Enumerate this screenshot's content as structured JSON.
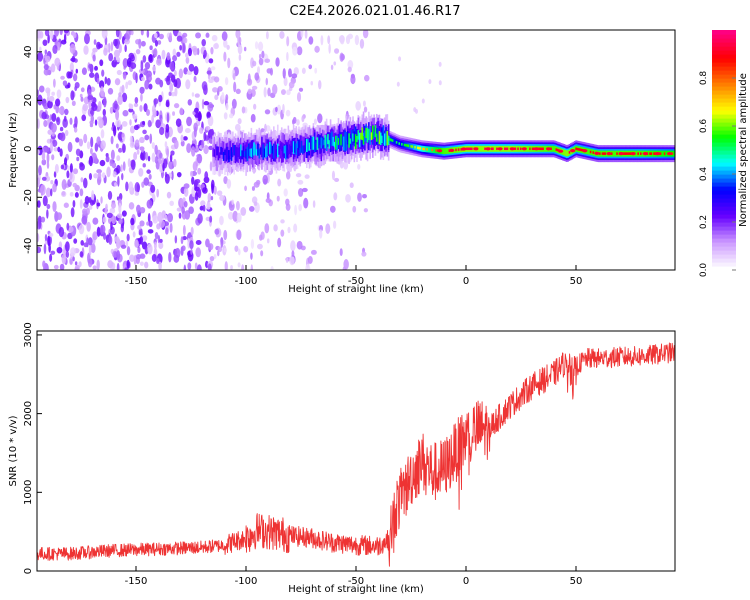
{
  "title": "C2E4.2026.021.01.46.R17",
  "chart_data": [
    {
      "type": "heatmap",
      "xlabel": "Height of straight line (km)",
      "ylabel": "Frequency (Hz)",
      "xlim": [
        -195,
        95
      ],
      "ylim": [
        -50,
        49
      ],
      "xticks": [
        -150,
        -100,
        -50,
        0,
        50
      ],
      "yticks": [
        -40,
        -20,
        0,
        20,
        40
      ],
      "colorbar": {
        "label": "Normalized spectral amplitude",
        "range": [
          0,
          1
        ],
        "ticks": [
          "0.0",
          "0.2",
          "0.4",
          "0.6",
          "0.8"
        ],
        "tick_values": [
          0,
          0.2,
          0.4,
          0.6,
          0.8
        ],
        "colors": [
          "#ffffff",
          "#cc99ff",
          "#6600ff",
          "#0000ff",
          "#00ffff",
          "#00ff00",
          "#ffff00",
          "#ff8000",
          "#ff0000",
          "#ff0080"
        ]
      },
      "ridge": {
        "description_points_x": [
          -115,
          -100,
          -80,
          -60,
          -40,
          -30,
          -20,
          -10,
          0,
          20,
          40,
          46,
          50,
          60,
          80,
          95
        ],
        "frequency_hz": [
          -2,
          -1,
          0,
          3,
          6,
          2,
          0,
          -1,
          0,
          0,
          0,
          -2,
          0,
          -2,
          -2,
          -2
        ],
        "amplitude": [
          0.3,
          0.4,
          0.4,
          0.5,
          0.6,
          0.5,
          0.7,
          0.9,
          0.95,
          0.95,
          0.9,
          0.95,
          0.9,
          0.9,
          0.9,
          0.85
        ]
      },
      "noise_region_x": [
        -195,
        -45
      ]
    },
    {
      "type": "line",
      "xlabel": "Height of straight line (km)",
      "ylabel": "SNR (10 * v/v)",
      "xlim": [
        -195,
        95
      ],
      "ylim": [
        0,
        3050
      ],
      "xticks": [
        -150,
        -100,
        -50,
        0,
        50
      ],
      "yticks": [
        0,
        1000,
        2000,
        3000
      ],
      "series": [
        {
          "name": "SNR",
          "color": "#ee3333",
          "x": [
            -195,
            -180,
            -160,
            -140,
            -120,
            -110,
            -100,
            -95,
            -90,
            -80,
            -70,
            -60,
            -50,
            -40,
            -35,
            -32,
            -28,
            -25,
            -20,
            -15,
            -10,
            -5,
            0,
            5,
            10,
            15,
            20,
            30,
            40,
            45,
            50,
            55,
            60,
            70,
            80,
            95
          ],
          "values": [
            220,
            220,
            260,
            280,
            300,
            330,
            420,
            520,
            500,
            450,
            420,
            360,
            330,
            320,
            400,
            800,
            1000,
            1200,
            1400,
            1250,
            1300,
            1500,
            1700,
            1800,
            1800,
            1950,
            2100,
            2350,
            2500,
            2650,
            2600,
            2700,
            2700,
            2720,
            2730,
            2780
          ]
        }
      ]
    }
  ]
}
